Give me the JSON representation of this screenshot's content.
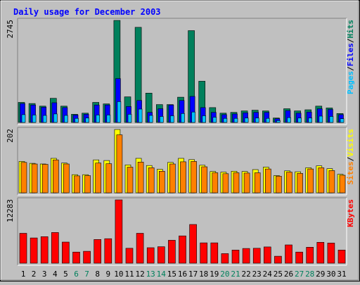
{
  "chart_data": {
    "type": "bar",
    "title": "Daily usage for December 2003",
    "categories": [
      "1",
      "2",
      "3",
      "4",
      "5",
      "6",
      "7",
      "8",
      "9",
      "10",
      "11",
      "12",
      "13",
      "14",
      "15",
      "16",
      "17",
      "18",
      "19",
      "20",
      "21",
      "22",
      "23",
      "24",
      "25",
      "26",
      "27",
      "28",
      "29",
      "30",
      "31"
    ],
    "weekend_days": [
      "6",
      "7",
      "13",
      "14",
      "20",
      "21",
      "27",
      "28"
    ],
    "panels": [
      {
        "id": "hits-files-pages",
        "ymax_label": "2745",
        "ymax": 2745,
        "series": [
          {
            "name": "Hits",
            "color": "#00805c",
            "values": [
              540,
              510,
              440,
              650,
              440,
              220,
              250,
              540,
              500,
              2745,
              690,
              2560,
              790,
              480,
              480,
              680,
              2470,
              1110,
              400,
              250,
              270,
              310,
              330,
              310,
              120,
              370,
              310,
              340,
              440,
              390,
              240
            ]
          },
          {
            "name": "Files",
            "color": "#0000ff",
            "values": [
              510,
              470,
              410,
              530,
              400,
              200,
              220,
              470,
              470,
              1180,
              430,
              590,
              270,
              370,
              470,
              590,
              700,
              400,
              270,
              210,
              230,
              260,
              270,
              270,
              100,
              320,
              250,
              280,
              370,
              350,
              210
            ]
          },
          {
            "name": "Pages",
            "color": "#00c0ff",
            "values": [
              210,
              200,
              190,
              230,
              190,
              110,
              120,
              200,
              200,
              560,
              220,
              360,
              190,
              160,
              180,
              240,
              280,
              180,
              140,
              110,
              110,
              120,
              120,
              110,
              50,
              130,
              120,
              120,
              170,
              160,
              100
            ]
          }
        ],
        "legend": [
          {
            "label": "Pages",
            "color": "#00c0ff"
          },
          {
            "label": "/",
            "color": "#000000"
          },
          {
            "label": "Files",
            "color": "#0000ff"
          },
          {
            "label": "/",
            "color": "#000000"
          },
          {
            "label": "Hits",
            "color": "#00805c"
          }
        ]
      },
      {
        "id": "visits-sites",
        "ymax_label": "202",
        "ymax": 202,
        "series": [
          {
            "name": "Visits",
            "color": "#ffff00",
            "values": [
              100,
              94,
              92,
              110,
              95,
              58,
              58,
              105,
              103,
              202,
              89,
              110,
              87,
              75,
              97,
              110,
              106,
              88,
              68,
              66,
              69,
              68,
              74,
              82,
              55,
              70,
              67,
              80,
              86,
              77,
              59
            ]
          },
          {
            "name": "Sites",
            "color": "#ff8000",
            "values": [
              97,
              92,
              91,
              105,
              92,
              54,
              55,
              95,
              93,
              185,
              82,
              98,
              80,
              69,
              92,
              99,
              100,
              83,
              64,
              61,
              64,
              63,
              64,
              76,
              53,
              66,
              62,
              76,
              80,
              71,
              56
            ]
          }
        ],
        "legend": [
          {
            "label": "Sites",
            "color": "#ff8000"
          },
          {
            "label": "/",
            "color": "#000000"
          },
          {
            "label": "Visits",
            "color": "#ffff00"
          }
        ]
      },
      {
        "id": "kbytes",
        "ymax_label": "12283",
        "ymax": 12283,
        "series": [
          {
            "name": "KBytes",
            "color": "#ff0000",
            "values": [
              5800,
              4900,
              5150,
              5950,
              4100,
              2150,
              2300,
              4600,
              4750,
              12283,
              2900,
              5800,
              3000,
              3200,
              4450,
              5300,
              7500,
              3950,
              3950,
              1850,
              2550,
              2850,
              2900,
              3150,
              1350,
              3550,
              2150,
              3100,
              4050,
              3900,
              2550
            ]
          }
        ],
        "legend": [
          {
            "label": "KBytes",
            "color": "#ff0000"
          }
        ]
      }
    ]
  }
}
